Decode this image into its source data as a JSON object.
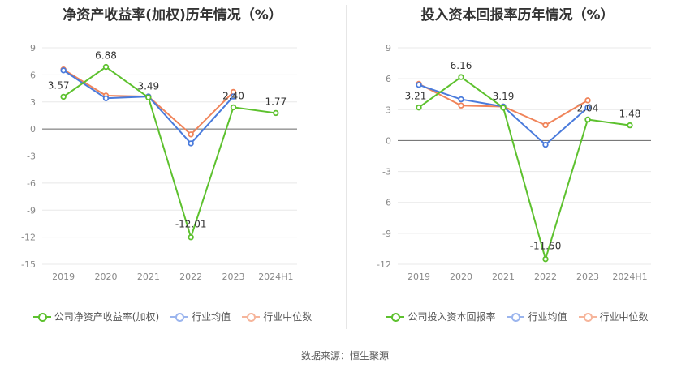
{
  "chart_data": [
    {
      "type": "line",
      "title": "净资产收益率(加权)历年情况（%）",
      "categories": [
        "2019",
        "2020",
        "2021",
        "2022",
        "2023",
        "2024H1"
      ],
      "yticks": [
        "9",
        "6",
        "3",
        "0",
        "-3",
        "-6",
        "-9",
        "-12",
        "-15"
      ],
      "ylim": [
        -15,
        9
      ],
      "series": [
        {
          "name": "公司净资产收益率(加权)",
          "color": "#5dc12e",
          "values": [
            3.57,
            6.88,
            3.49,
            -12.01,
            2.4,
            1.77
          ],
          "labels": [
            "3.57",
            "6.88",
            "3.49",
            "-12.01",
            "2.40",
            "1.77"
          ]
        },
        {
          "name": "行业均值",
          "color": "#4a7bdc",
          "values": [
            6.5,
            3.4,
            3.6,
            -1.6,
            3.6,
            null
          ]
        },
        {
          "name": "行业中位数",
          "color": "#f0845a",
          "values": [
            6.6,
            3.7,
            3.6,
            -0.6,
            4.1,
            null
          ]
        }
      ]
    },
    {
      "type": "line",
      "title": "投入资本回报率历年情况（%）",
      "categories": [
        "2019",
        "2020",
        "2021",
        "2022",
        "2023",
        "2024H1"
      ],
      "yticks": [
        "9",
        "6",
        "3",
        "0",
        "-3",
        "-6",
        "-9",
        "-12"
      ],
      "ylim": [
        -12,
        9
      ],
      "series": [
        {
          "name": "公司投入资本回报率",
          "color": "#5dc12e",
          "values": [
            3.21,
            6.16,
            3.19,
            -11.5,
            2.04,
            1.48
          ],
          "labels": [
            "3.21",
            "6.16",
            "3.19",
            "-11.50",
            "2.04",
            "1.48"
          ]
        },
        {
          "name": "行业均值",
          "color": "#4a7bdc",
          "values": [
            5.4,
            4.0,
            3.3,
            -0.4,
            3.2,
            null
          ]
        },
        {
          "name": "行业中位数",
          "color": "#f0845a",
          "values": [
            5.5,
            3.4,
            3.3,
            1.5,
            3.9,
            null
          ]
        }
      ]
    }
  ],
  "source": "数据来源：恒生聚源"
}
